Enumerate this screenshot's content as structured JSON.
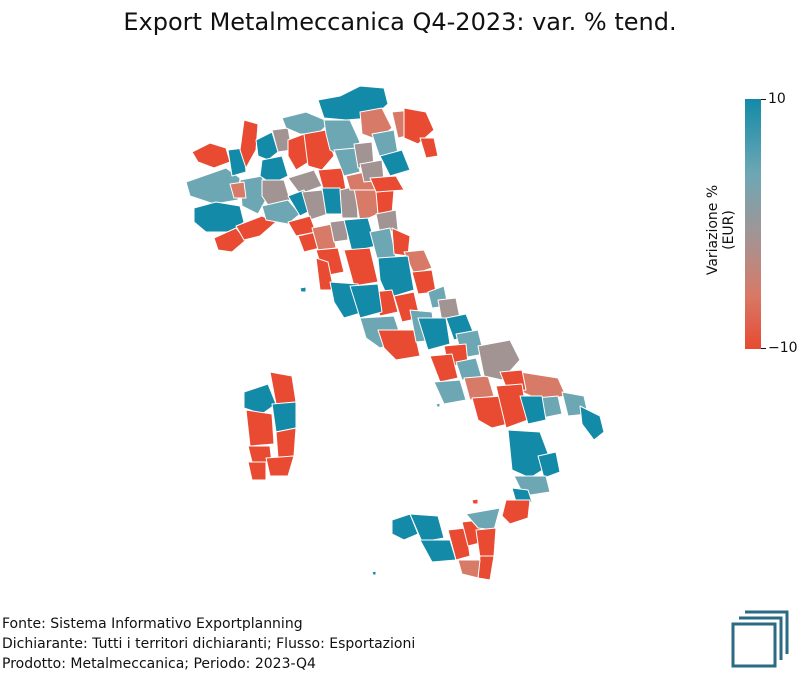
{
  "title": "Export Metalmeccanica Q4-2023: var. % tend.",
  "legend": {
    "label": "Variazione % (EUR)",
    "max_label": "10",
    "min_label": "−10",
    "colors": {
      "high": "#138aa8",
      "mid": "#a39494",
      "low": "#e84a32"
    }
  },
  "footer": {
    "source": "Fonte: Sistema Informativo Exportplanning",
    "declarant": "Dichiarante: Tutti i territori dichiaranti; Flusso: Esportazioni",
    "product": "Prodotto: Metalmeccanica; Periodo: 2023-Q4"
  },
  "logo": {
    "icon": "exportplanning-logo-icon",
    "color": "#2a6a85"
  }
}
